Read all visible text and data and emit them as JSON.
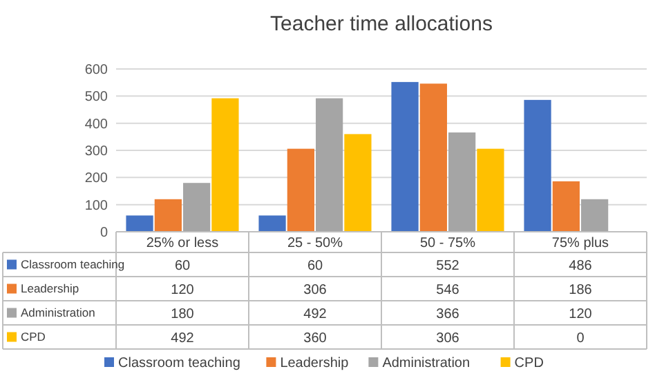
{
  "chart_data": {
    "type": "bar",
    "title": "Teacher time allocations",
    "categories": [
      "25% or less",
      "25 - 50%",
      "50 - 75%",
      "75% plus"
    ],
    "series": [
      {
        "name": "Classroom teaching",
        "color": "#4472c4",
        "values": [
          60,
          60,
          552,
          486
        ]
      },
      {
        "name": "Leadership",
        "color": "#ed7d31",
        "values": [
          120,
          306,
          546,
          186
        ]
      },
      {
        "name": "Administration",
        "color": "#a5a5a5",
        "values": [
          180,
          492,
          366,
          120
        ]
      },
      {
        "name": "CPD",
        "color": "#ffc000",
        "values": [
          492,
          360,
          306,
          0
        ]
      }
    ],
    "ylim": [
      0,
      600
    ],
    "yticks": [
      0,
      100,
      200,
      300,
      400,
      500,
      600
    ],
    "grid": "y",
    "legend": "bottom",
    "data_labels": true
  }
}
